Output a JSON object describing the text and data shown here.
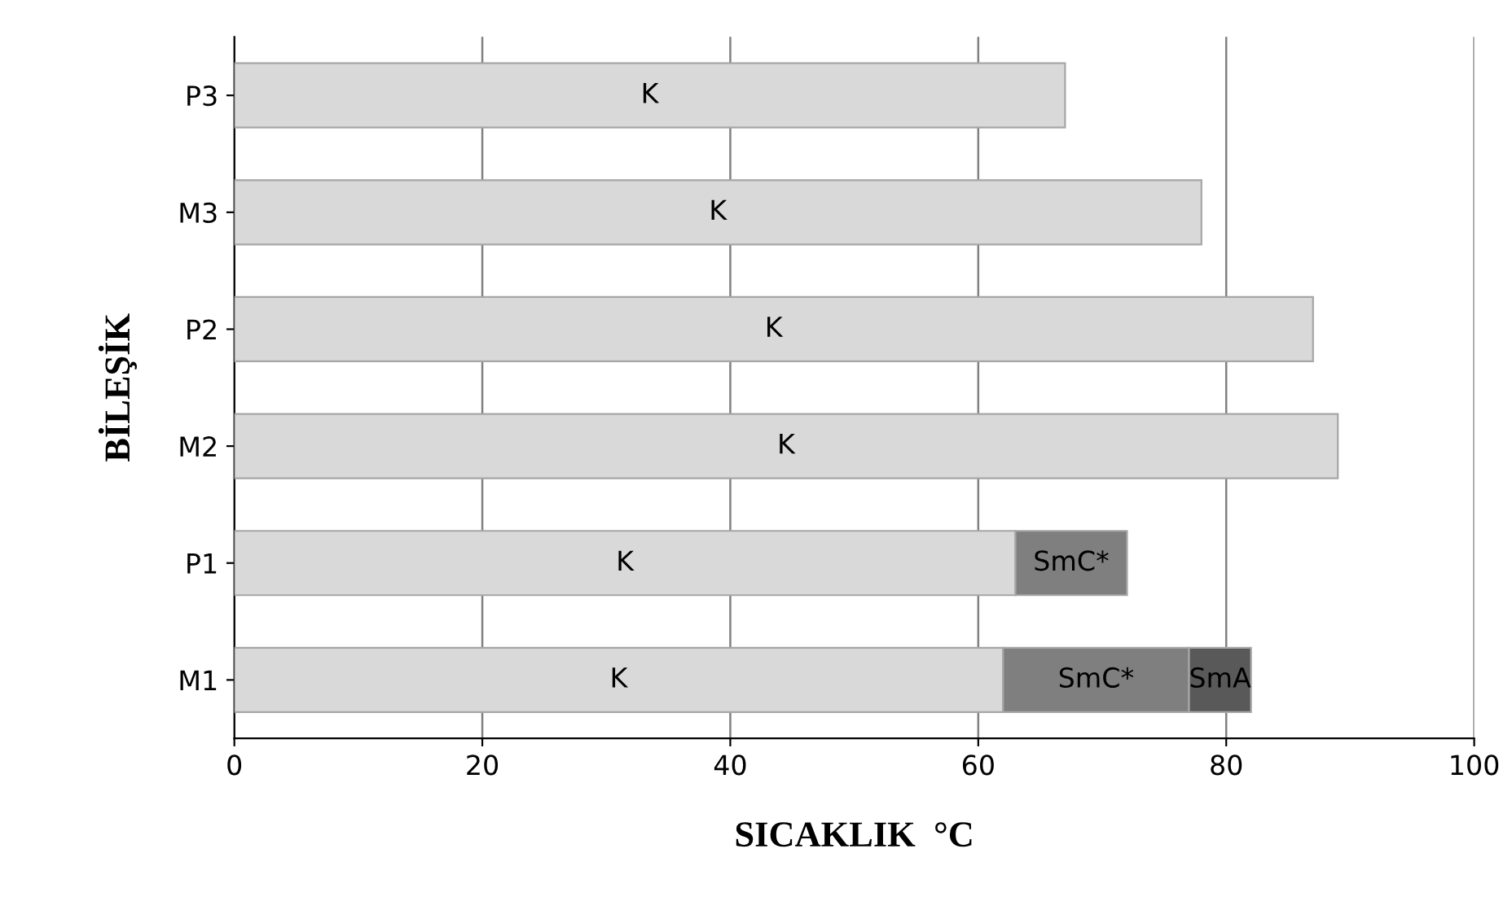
{
  "chart_data": {
    "type": "bar",
    "orientation": "horizontal",
    "stacked": true,
    "xlabel": "SICAKLIK  °C",
    "ylabel": "BİLEŞİK",
    "categories": [
      "P3",
      "M3",
      "P2",
      "M2",
      "P1",
      "M1"
    ],
    "series": [
      {
        "name": "K",
        "color": "#d9d9d9",
        "values": [
          67,
          78,
          87,
          89,
          63,
          62
        ]
      },
      {
        "name": "SmC*",
        "color": "#7f7f7f",
        "values": [
          null,
          null,
          null,
          null,
          9,
          15
        ]
      },
      {
        "name": "SmA",
        "color": "#595959",
        "values": [
          null,
          null,
          null,
          null,
          null,
          5
        ]
      }
    ],
    "xlim": [
      0,
      100
    ],
    "xticks": [
      0,
      20,
      40,
      60,
      80,
      100
    ],
    "grid": "x",
    "legend": false
  }
}
